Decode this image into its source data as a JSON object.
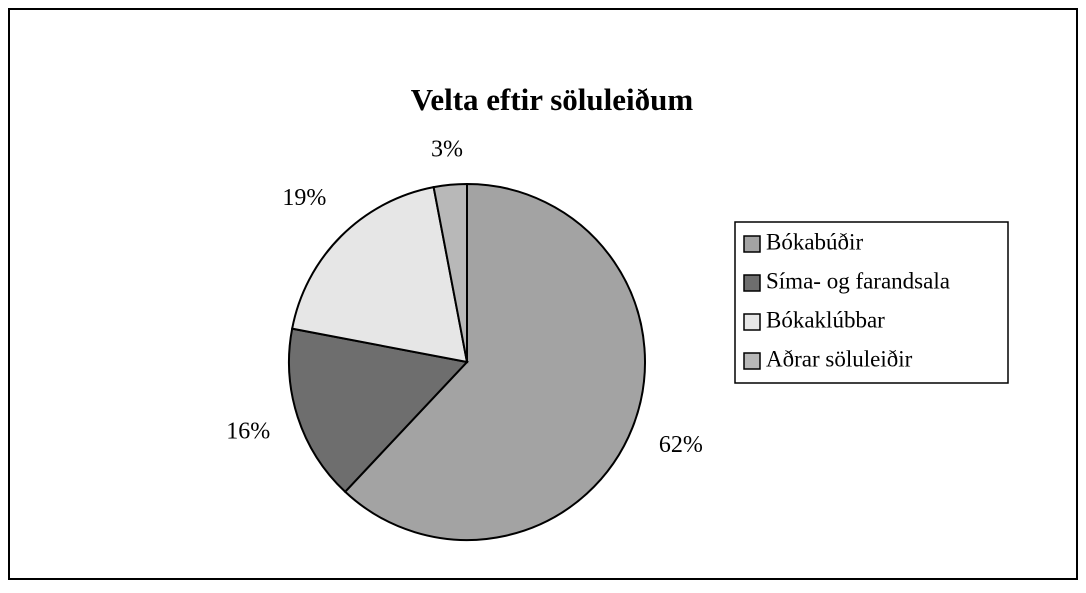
{
  "chart_data": {
    "type": "pie",
    "title": "Velta eftir söluleiðum",
    "categories": [
      "Bókabúðir",
      "Síma- og farandsala",
      "Bókaklúbbar",
      "Aðrar söluleiðir"
    ],
    "values": [
      62,
      16,
      19,
      3
    ],
    "value_labels": [
      "62%",
      "16%",
      "19%",
      "3%"
    ],
    "colors": [
      "#a3a3a3",
      "#6e6e6e",
      "#e6e6e6",
      "#b8b8b8"
    ],
    "legend": "right"
  }
}
